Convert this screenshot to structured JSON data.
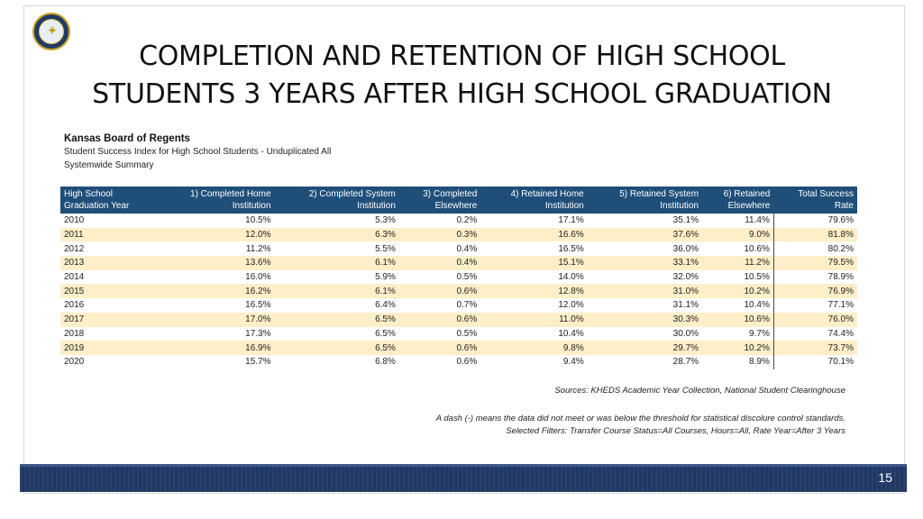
{
  "title": {
    "line1": "COMPLETION AND RETENTION OF HIGH SCHOOL",
    "line2": "STUDENTS 3 YEARS AFTER HIGH SCHOOL GRADUATION"
  },
  "logo": {
    "icon": "kansas-regents-seal-icon",
    "color": "#1f3a63",
    "accent": "#c9a227"
  },
  "report": {
    "org": "Kansas Board of Regents",
    "subtitle1": "Student Success Index for High School Students - Unduplicated All",
    "subtitle2": "Systemwide Summary"
  },
  "table": {
    "header_color": "#1f4e79",
    "alt_row_color": "#ffefc8",
    "headers": [
      [
        "High School",
        "Graduation Year"
      ],
      [
        "1) Completed Home",
        "Institution"
      ],
      [
        "2) Completed System",
        "Institution"
      ],
      [
        "3) Completed",
        "Elsewhere"
      ],
      [
        "4) Retained Home",
        "Institution"
      ],
      [
        "5) Retained System",
        "Institution"
      ],
      [
        "6) Retained",
        "Elsewhere"
      ],
      [
        "Total Success",
        "Rate"
      ]
    ],
    "rows": [
      [
        "2010",
        "10.5%",
        "5.3%",
        "0.2%",
        "17.1%",
        "35.1%",
        "11.4%",
        "79.6%"
      ],
      [
        "2011",
        "12.0%",
        "6.3%",
        "0.3%",
        "16.6%",
        "37.6%",
        "9.0%",
        "81.8%"
      ],
      [
        "2012",
        "11.2%",
        "5.5%",
        "0.4%",
        "16.5%",
        "36.0%",
        "10.6%",
        "80.2%"
      ],
      [
        "2013",
        "13.6%",
        "6.1%",
        "0.4%",
        "15.1%",
        "33.1%",
        "11.2%",
        "79.5%"
      ],
      [
        "2014",
        "16.0%",
        "5.9%",
        "0.5%",
        "14.0%",
        "32.0%",
        "10.5%",
        "78.9%"
      ],
      [
        "2015",
        "16.2%",
        "6.1%",
        "0.6%",
        "12.8%",
        "31.0%",
        "10.2%",
        "76.9%"
      ],
      [
        "2016",
        "16.5%",
        "6.4%",
        "0.7%",
        "12.0%",
        "31.1%",
        "10.4%",
        "77.1%"
      ],
      [
        "2017",
        "17.0%",
        "6.5%",
        "0.6%",
        "11.0%",
        "30.3%",
        "10.6%",
        "76.0%"
      ],
      [
        "2018",
        "17.3%",
        "6.5%",
        "0.5%",
        "10.4%",
        "30.0%",
        "9.7%",
        "74.4%"
      ],
      [
        "2019",
        "16.9%",
        "6.5%",
        "0.6%",
        "9.8%",
        "29.7%",
        "10.2%",
        "73.7%"
      ],
      [
        "2020",
        "15.7%",
        "6.8%",
        "0.6%",
        "9.4%",
        "28.7%",
        "8.9%",
        "70.1%"
      ]
    ]
  },
  "notes": {
    "sources": "Sources: KHEDS Academic Year Collection, National Student Clearinghouse",
    "dash_note": "A dash (-) means the data did not meet or was below the threshold for statistical discolure control standards.",
    "filters": "Selected Filters: Transfer Course Status=All Courses, Hours=All, Rate Year=After 3 Years"
  },
  "footer": {
    "page_number": "15",
    "bar_color": "#203764"
  }
}
